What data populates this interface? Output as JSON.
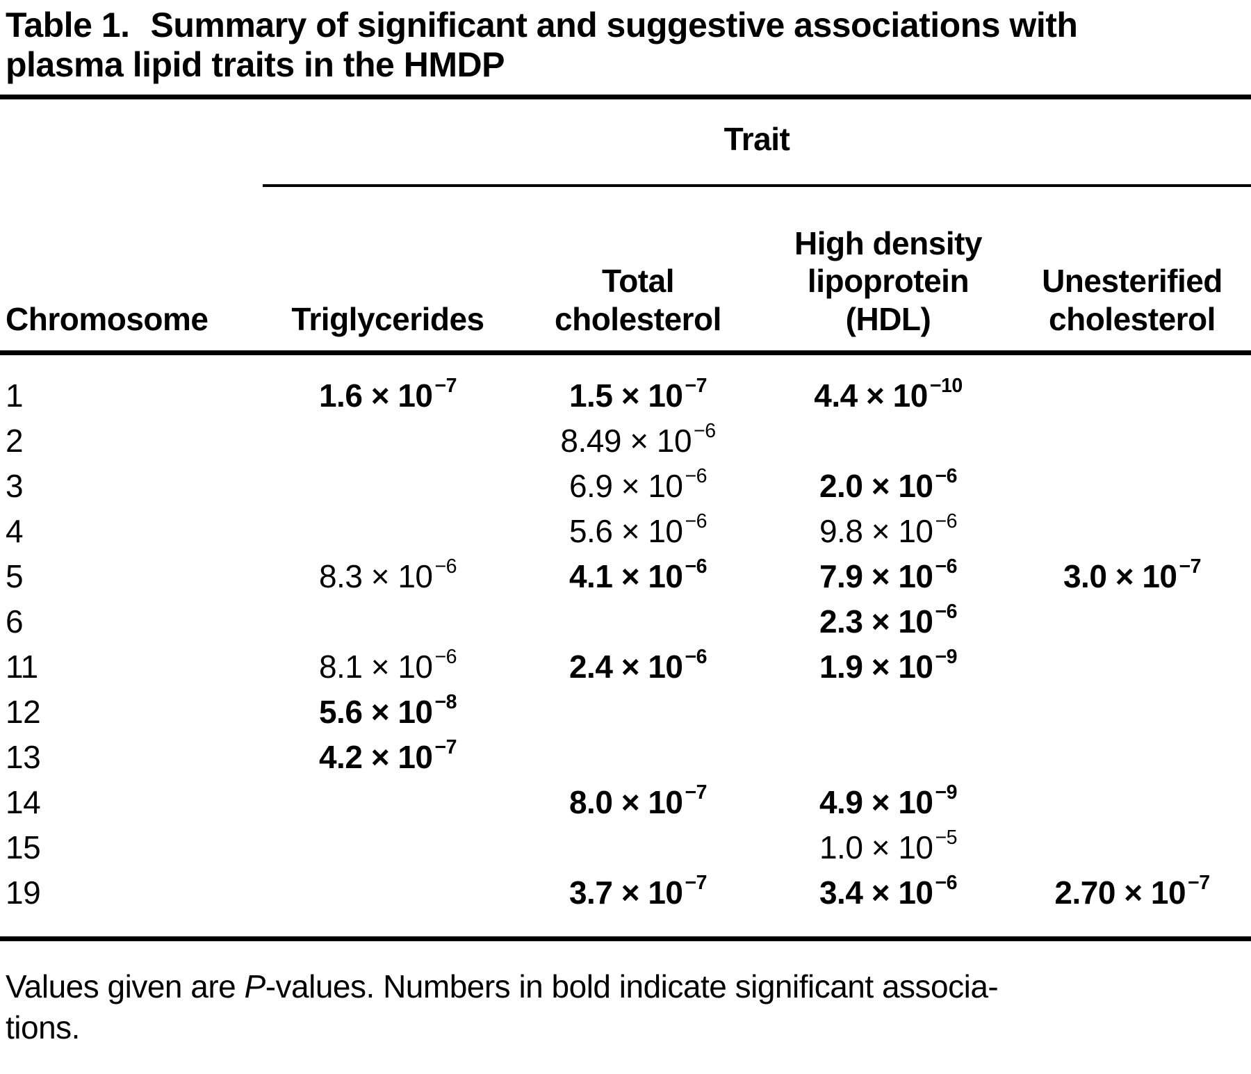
{
  "title": {
    "label": "Table 1.",
    "text": "Summary of significant and suggestive associations with\nplasma lipid traits in the HMDP"
  },
  "table": {
    "trait_header": "Trait",
    "multiplication_sign": "×",
    "columns": {
      "chromosome": "Chromosome",
      "triglycerides": "Triglycerides",
      "total_cholesterol": "Total\ncholesterol",
      "hdl": "High density\nlipoprotein\n(HDL)",
      "unesterified": "Unesterified\ncholesterol"
    },
    "rows": [
      {
        "chromosome": "1",
        "cells": [
          {
            "mantissa": "1.6",
            "exponent": "−7",
            "bold": true
          },
          {
            "mantissa": "1.5",
            "exponent": "−7",
            "bold": true
          },
          {
            "mantissa": "4.4",
            "exponent": "−10",
            "bold": true
          },
          null
        ]
      },
      {
        "chromosome": "2",
        "cells": [
          null,
          {
            "mantissa": "8.49",
            "exponent": "−6",
            "bold": false
          },
          null,
          null
        ]
      },
      {
        "chromosome": "3",
        "cells": [
          null,
          {
            "mantissa": "6.9",
            "exponent": "−6",
            "bold": false
          },
          {
            "mantissa": "2.0",
            "exponent": "−6",
            "bold": true
          },
          null
        ]
      },
      {
        "chromosome": "4",
        "cells": [
          null,
          {
            "mantissa": "5.6",
            "exponent": "−6",
            "bold": false
          },
          {
            "mantissa": "9.8",
            "exponent": "−6",
            "bold": false
          },
          null
        ]
      },
      {
        "chromosome": "5",
        "cells": [
          {
            "mantissa": "8.3",
            "exponent": "−6",
            "bold": false
          },
          {
            "mantissa": "4.1",
            "exponent": "−6",
            "bold": true
          },
          {
            "mantissa": "7.9",
            "exponent": "−6",
            "bold": true
          },
          {
            "mantissa": "3.0",
            "exponent": "−7",
            "bold": true
          }
        ]
      },
      {
        "chromosome": "6",
        "cells": [
          null,
          null,
          {
            "mantissa": "2.3",
            "exponent": "−6",
            "bold": true
          },
          null
        ]
      },
      {
        "chromosome": "11",
        "cells": [
          {
            "mantissa": "8.1",
            "exponent": "−6",
            "bold": false
          },
          {
            "mantissa": "2.4",
            "exponent": "−6",
            "bold": true
          },
          {
            "mantissa": "1.9",
            "exponent": "−9",
            "bold": true
          },
          null
        ]
      },
      {
        "chromosome": "12",
        "cells": [
          {
            "mantissa": "5.6",
            "exponent": "−8",
            "bold": true
          },
          null,
          null,
          null
        ]
      },
      {
        "chromosome": "13",
        "cells": [
          {
            "mantissa": "4.2",
            "exponent": "−7",
            "bold": true
          },
          null,
          null,
          null
        ]
      },
      {
        "chromosome": "14",
        "cells": [
          null,
          {
            "mantissa": "8.0",
            "exponent": "−7",
            "bold": true
          },
          {
            "mantissa": "4.9",
            "exponent": "−9",
            "bold": true
          },
          null
        ]
      },
      {
        "chromosome": "15",
        "cells": [
          null,
          null,
          {
            "mantissa": "1.0",
            "exponent": "−5",
            "bold": false
          },
          null
        ]
      },
      {
        "chromosome": "19",
        "cells": [
          null,
          {
            "mantissa": "3.7",
            "exponent": "−7",
            "bold": true
          },
          {
            "mantissa": "3.4",
            "exponent": "−6",
            "bold": true
          },
          {
            "mantissa": "2.70",
            "exponent": "−7",
            "bold": true
          }
        ]
      }
    ]
  },
  "footnote": {
    "pre": "Values given are ",
    "italic": "P",
    "post": "-values. Numbers in bold indicate significant associa-\ntions."
  }
}
